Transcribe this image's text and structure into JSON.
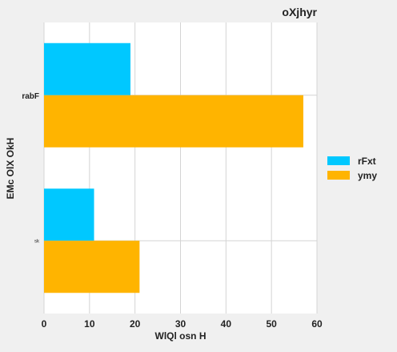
{
  "chart_data": {
    "type": "bar",
    "orientation": "horizontal",
    "title": "oXjhyr",
    "xlabel": "WlQl osn H",
    "ylabel": "EMc OlX OkH",
    "categories": [
      "rabF",
      "sk"
    ],
    "series": [
      {
        "name": "rFxt",
        "color": "#00c8ff",
        "values": [
          19,
          11
        ]
      },
      {
        "name": "ymy",
        "color": "#ffb400",
        "values": [
          57,
          21
        ]
      }
    ],
    "xlim": [
      0,
      60
    ],
    "xticks": [
      "0",
      "10",
      "20",
      "30",
      "40",
      "50",
      "60"
    ],
    "grid": true,
    "legend_position": "right"
  }
}
